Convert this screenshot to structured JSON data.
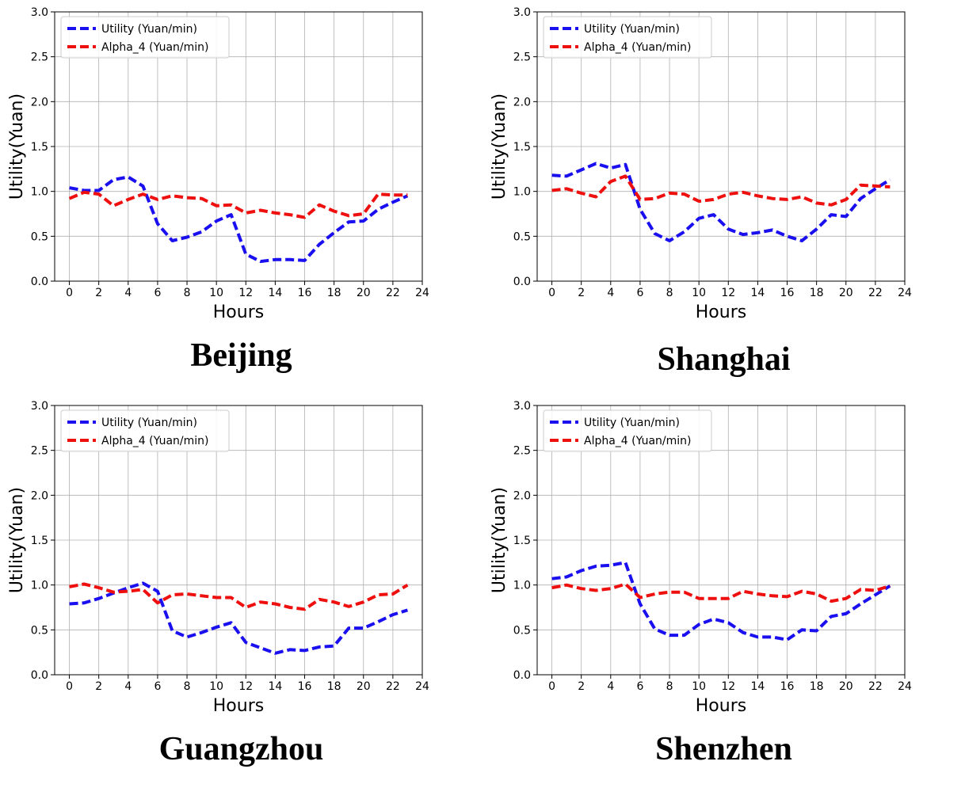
{
  "chart_data": [
    {
      "type": "line",
      "title": "Beijing",
      "xlabel": "Hours",
      "ylabel": "Utility(Yuan)",
      "xlim": [
        -1,
        24
      ],
      "ylim": [
        0,
        3.0
      ],
      "xticks": [
        0,
        2,
        4,
        6,
        8,
        10,
        12,
        14,
        16,
        18,
        20,
        22,
        24
      ],
      "yticks": [
        0.0,
        0.5,
        1.0,
        1.5,
        2.0,
        2.5,
        3.0
      ],
      "ytick_labels": [
        "0.0",
        "0.5",
        "1.0",
        "1.5",
        "2.0",
        "2.5",
        "3.0"
      ],
      "grid": true,
      "legend": "top-left",
      "x": [
        0,
        1,
        2,
        3,
        4,
        5,
        6,
        7,
        8,
        9,
        10,
        11,
        12,
        13,
        14,
        15,
        16,
        17,
        18,
        19,
        20,
        21,
        22,
        23
      ],
      "series": [
        {
          "name": "Utility (Yuan/min)",
          "color": "#1a0fee",
          "style": "dashed",
          "values": [
            1.04,
            1.01,
            1.01,
            1.13,
            1.16,
            1.06,
            0.64,
            0.45,
            0.49,
            0.55,
            0.67,
            0.74,
            0.3,
            0.22,
            0.24,
            0.24,
            0.23,
            0.41,
            0.54,
            0.66,
            0.67,
            0.8,
            0.88,
            0.95
          ]
        },
        {
          "name": "Alpha_4 (Yuan/min)",
          "color": "#ee0f0f",
          "style": "dashed",
          "values": [
            0.92,
            0.99,
            0.97,
            0.84,
            0.91,
            0.97,
            0.91,
            0.95,
            0.93,
            0.92,
            0.84,
            0.85,
            0.76,
            0.79,
            0.76,
            0.74,
            0.71,
            0.85,
            0.78,
            0.73,
            0.75,
            0.97,
            0.96,
            0.96
          ]
        }
      ]
    },
    {
      "type": "line",
      "title": "Shanghai",
      "xlabel": "Hours",
      "ylabel": "Utility(Yuan)",
      "xlim": [
        -1,
        24
      ],
      "ylim": [
        0,
        3.0
      ],
      "xticks": [
        0,
        2,
        4,
        6,
        8,
        10,
        12,
        14,
        16,
        18,
        20,
        22,
        24
      ],
      "yticks": [
        0.0,
        0.5,
        1.0,
        1.5,
        2.0,
        2.5,
        3.0
      ],
      "ytick_labels": [
        "0.0",
        "0.5",
        "1.0",
        "1.5",
        "2.0",
        "2.5",
        "3.0"
      ],
      "grid": true,
      "legend": "top-left",
      "x": [
        0,
        1,
        2,
        3,
        4,
        5,
        6,
        7,
        8,
        9,
        10,
        11,
        12,
        13,
        14,
        15,
        16,
        17,
        18,
        19,
        20,
        21,
        22,
        23
      ],
      "series": [
        {
          "name": "Utility (Yuan/min)",
          "color": "#1a0fee",
          "style": "dashed",
          "values": [
            1.18,
            1.17,
            1.24,
            1.31,
            1.26,
            1.3,
            0.8,
            0.53,
            0.45,
            0.55,
            0.7,
            0.74,
            0.58,
            0.52,
            0.54,
            0.57,
            0.5,
            0.45,
            0.58,
            0.74,
            0.72,
            0.92,
            1.03,
            1.13
          ]
        },
        {
          "name": "Alpha_4 (Yuan/min)",
          "color": "#ee0f0f",
          "style": "dashed",
          "values": [
            1.01,
            1.03,
            0.98,
            0.94,
            1.11,
            1.17,
            0.91,
            0.92,
            0.98,
            0.97,
            0.89,
            0.91,
            0.97,
            0.99,
            0.95,
            0.92,
            0.91,
            0.94,
            0.87,
            0.85,
            0.91,
            1.07,
            1.06,
            1.05
          ]
        }
      ]
    },
    {
      "type": "line",
      "title": "Guangzhou",
      "xlabel": "Hours",
      "ylabel": "Utility(Yuan)",
      "xlim": [
        -1,
        24
      ],
      "ylim": [
        0,
        3.0
      ],
      "xticks": [
        0,
        2,
        4,
        6,
        8,
        10,
        12,
        14,
        16,
        18,
        20,
        22,
        24
      ],
      "yticks": [
        0.0,
        0.5,
        1.0,
        1.5,
        2.0,
        2.5,
        3.0
      ],
      "ytick_labels": [
        "0.0",
        "0.5",
        "1.0",
        "1.5",
        "2.0",
        "2.5",
        "3.0"
      ],
      "grid": true,
      "legend": "top-left",
      "x": [
        0,
        1,
        2,
        3,
        4,
        5,
        6,
        7,
        8,
        9,
        10,
        11,
        12,
        13,
        14,
        15,
        16,
        17,
        18,
        19,
        20,
        21,
        22,
        23
      ],
      "series": [
        {
          "name": "Utility (Yuan/min)",
          "color": "#1a0fee",
          "style": "dashed",
          "values": [
            0.79,
            0.8,
            0.85,
            0.91,
            0.97,
            1.02,
            0.93,
            0.49,
            0.42,
            0.47,
            0.53,
            0.58,
            0.36,
            0.3,
            0.24,
            0.28,
            0.27,
            0.31,
            0.32,
            0.52,
            0.52,
            0.59,
            0.67,
            0.72
          ]
        },
        {
          "name": "Alpha_4 (Yuan/min)",
          "color": "#ee0f0f",
          "style": "dashed",
          "values": [
            0.98,
            1.01,
            0.97,
            0.92,
            0.93,
            0.95,
            0.8,
            0.89,
            0.9,
            0.88,
            0.86,
            0.86,
            0.75,
            0.81,
            0.79,
            0.75,
            0.73,
            0.84,
            0.81,
            0.76,
            0.81,
            0.89,
            0.9,
            1.0
          ]
        }
      ]
    },
    {
      "type": "line",
      "title": "Shenzhen",
      "xlabel": "Hours",
      "ylabel": "Utility(Yuan)",
      "xlim": [
        -1,
        24
      ],
      "ylim": [
        0,
        3.0
      ],
      "xticks": [
        0,
        2,
        4,
        6,
        8,
        10,
        12,
        14,
        16,
        18,
        20,
        22,
        24
      ],
      "yticks": [
        0.0,
        0.5,
        1.0,
        1.5,
        2.0,
        2.5,
        3.0
      ],
      "ytick_labels": [
        "0.0",
        "0.5",
        "1.0",
        "1.5",
        "2.0",
        "2.5",
        "3.0"
      ],
      "grid": true,
      "legend": "top-left",
      "x": [
        0,
        1,
        2,
        3,
        4,
        5,
        6,
        7,
        8,
        9,
        10,
        11,
        12,
        13,
        14,
        15,
        16,
        17,
        18,
        19,
        20,
        21,
        22,
        23
      ],
      "series": [
        {
          "name": "Utility (Yuan/min)",
          "color": "#1a0fee",
          "style": "dashed",
          "values": [
            1.07,
            1.09,
            1.16,
            1.21,
            1.22,
            1.25,
            0.79,
            0.51,
            0.44,
            0.44,
            0.56,
            0.62,
            0.58,
            0.47,
            0.42,
            0.42,
            0.39,
            0.5,
            0.49,
            0.65,
            0.68,
            0.79,
            0.89,
            0.99
          ]
        },
        {
          "name": "Alpha_4 (Yuan/min)",
          "color": "#ee0f0f",
          "style": "dashed",
          "values": [
            0.97,
            1.0,
            0.96,
            0.94,
            0.96,
            1.01,
            0.86,
            0.9,
            0.92,
            0.92,
            0.85,
            0.85,
            0.85,
            0.93,
            0.9,
            0.88,
            0.87,
            0.93,
            0.9,
            0.82,
            0.85,
            0.95,
            0.94,
            0.99
          ]
        }
      ]
    }
  ]
}
